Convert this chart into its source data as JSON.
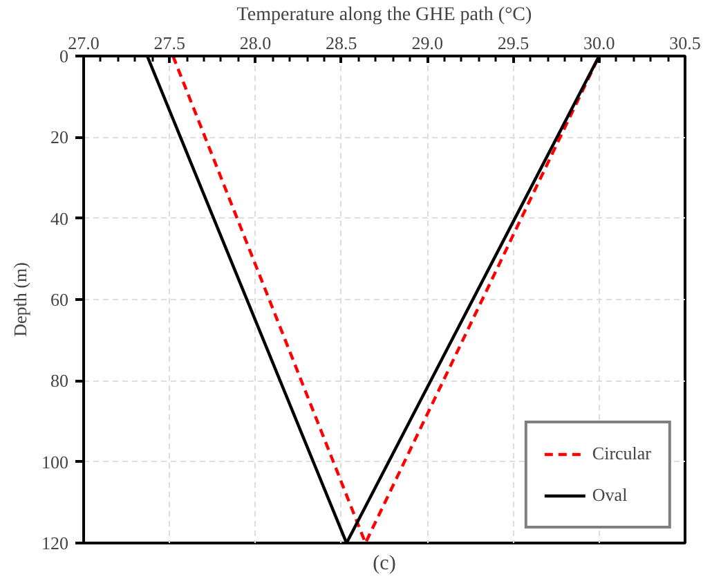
{
  "chart_data": {
    "type": "line",
    "xlabel": "Temperature along the GHE path (°C)",
    "ylabel": "Depth (m)",
    "xlim": [
      27.0,
      30.5
    ],
    "xticks": [
      {
        "value": 27.0,
        "label": "27.0"
      },
      {
        "value": 27.5,
        "label": "27.5"
      },
      {
        "value": 28.0,
        "label": "28.0"
      },
      {
        "value": 28.5,
        "label": "28.5"
      },
      {
        "value": 29.0,
        "label": "29.0"
      },
      {
        "value": 29.5,
        "label": "29.5"
      },
      {
        "value": 30.0,
        "label": "30.0"
      },
      {
        "value": 30.5,
        "label": "30.5"
      }
    ],
    "ylim": [
      120,
      0
    ],
    "yticks": [
      0,
      20,
      40,
      60,
      80,
      100,
      120
    ],
    "grid": true,
    "legend": "bottom right",
    "annotations": [
      "(c)"
    ],
    "series": [
      {
        "name": "Circular",
        "color": "#ff0000",
        "line_style": "dashed",
        "x": [
          27.52,
          28.64,
          30.0
        ],
        "values": [
          0,
          120,
          0
        ]
      },
      {
        "name": "Oval",
        "color": "#000000",
        "line_style": "solid",
        "x": [
          27.37,
          28.53,
          30.0
        ],
        "values": [
          0,
          120,
          0
        ]
      }
    ]
  }
}
